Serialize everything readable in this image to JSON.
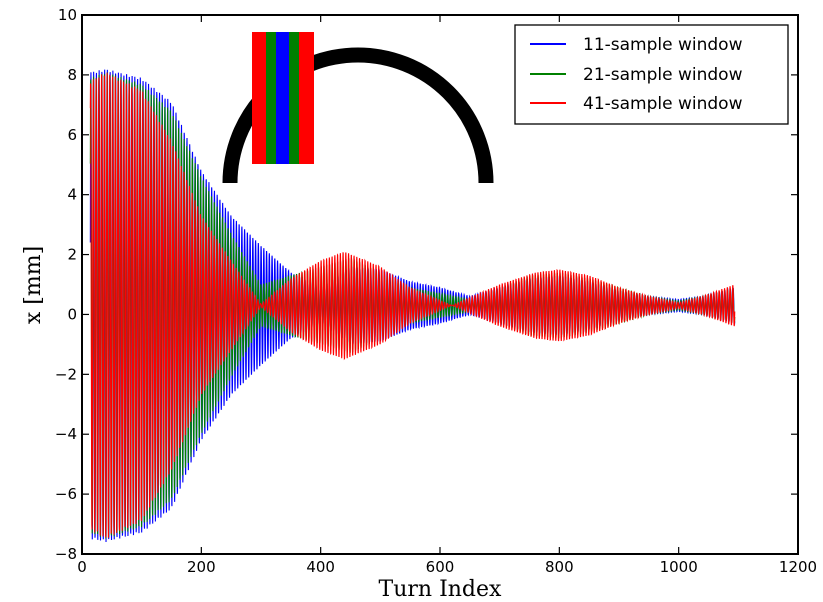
{
  "chart_data": {
    "type": "line",
    "xlabel": "Turn Index",
    "ylabel": "x [mm]",
    "xlim": [
      0,
      1200
    ],
    "ylim": [
      -8,
      10
    ],
    "xticks": [
      "0",
      "200",
      "400",
      "600",
      "800",
      "1000",
      "1200"
    ],
    "yticks": [
      "−8",
      "−6",
      "−4",
      "−2",
      "0",
      "2",
      "4",
      "6",
      "8",
      "10"
    ],
    "legend_position": "top-right",
    "series": [
      {
        "name": "11-sample window",
        "color": "#0000ff",
        "x_start": 14,
        "x_end": 1094,
        "period_turns": 4.6,
        "envelope": [
          [
            14,
            7.8
          ],
          [
            40,
            7.9
          ],
          [
            100,
            7.6
          ],
          [
            150,
            6.8
          ],
          [
            200,
            4.5
          ],
          [
            250,
            3.0
          ],
          [
            300,
            2.0
          ],
          [
            350,
            1.1
          ],
          [
            400,
            0.6
          ],
          [
            450,
            1.3
          ],
          [
            500,
            1.2
          ],
          [
            550,
            0.8
          ],
          [
            600,
            0.6
          ],
          [
            650,
            0.3
          ],
          [
            700,
            0.6
          ],
          [
            750,
            0.9
          ],
          [
            800,
            1.0
          ],
          [
            850,
            0.8
          ],
          [
            900,
            0.5
          ],
          [
            950,
            0.3
          ],
          [
            1000,
            0.2
          ],
          [
            1040,
            0.3
          ],
          [
            1094,
            0.6
          ]
        ]
      },
      {
        "name": "21-sample window",
        "color": "#008000",
        "x_start": 14,
        "x_end": 1094,
        "period_turns": 4.6,
        "envelope": [
          [
            14,
            7.6
          ],
          [
            40,
            7.8
          ],
          [
            100,
            7.4
          ],
          [
            150,
            6.5
          ],
          [
            200,
            4.3
          ],
          [
            250,
            2.4
          ],
          [
            300,
            0.7
          ],
          [
            350,
            1.0
          ],
          [
            400,
            1.3
          ],
          [
            450,
            1.6
          ],
          [
            500,
            1.1
          ],
          [
            550,
            0.6
          ],
          [
            600,
            0.4
          ],
          [
            650,
            0.2
          ],
          [
            700,
            0.6
          ],
          [
            750,
            1.0
          ],
          [
            800,
            1.1
          ],
          [
            850,
            0.9
          ],
          [
            900,
            0.6
          ],
          [
            950,
            0.3
          ],
          [
            1000,
            0.15
          ],
          [
            1040,
            0.3
          ],
          [
            1094,
            0.6
          ]
        ]
      },
      {
        "name": "41-sample window",
        "color": "#ff0000",
        "x_start": 14,
        "x_end": 1094,
        "period_turns": 4.6,
        "envelope": [
          [
            14,
            7.5
          ],
          [
            40,
            7.8
          ],
          [
            100,
            7.2
          ],
          [
            150,
            5.5
          ],
          [
            200,
            3.0
          ],
          [
            250,
            1.5
          ],
          [
            300,
            0.05
          ],
          [
            350,
            0.9
          ],
          [
            400,
            1.5
          ],
          [
            440,
            1.8
          ],
          [
            500,
            1.3
          ],
          [
            550,
            0.6
          ],
          [
            620,
            0.0
          ],
          [
            700,
            0.7
          ],
          [
            760,
            1.1
          ],
          [
            800,
            1.2
          ],
          [
            850,
            1.0
          ],
          [
            900,
            0.6
          ],
          [
            950,
            0.3
          ],
          [
            1000,
            0.1
          ],
          [
            1040,
            0.3
          ],
          [
            1094,
            0.7
          ]
        ]
      }
    ]
  }
}
